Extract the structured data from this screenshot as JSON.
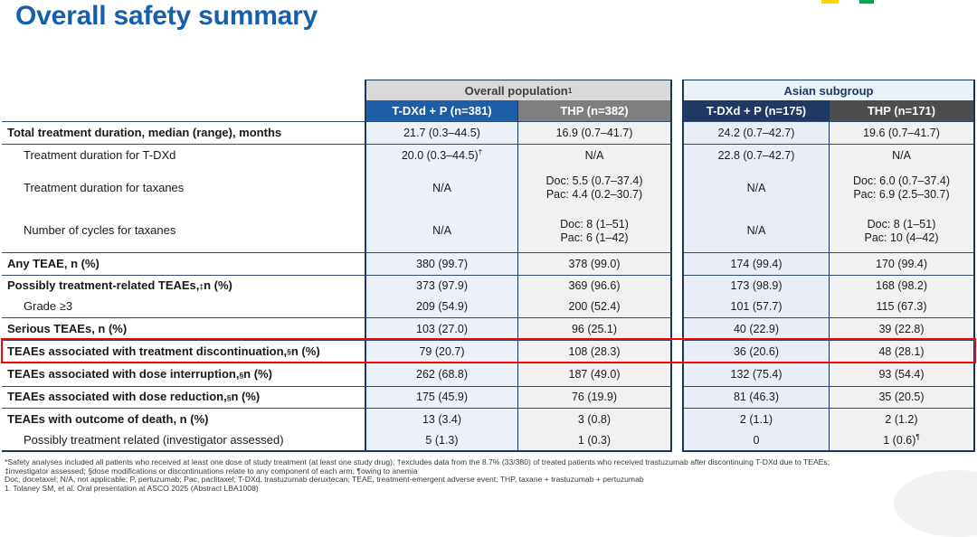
{
  "slide": {
    "title": "Overall safety summary"
  },
  "colors": {
    "title_blue": "#1660AB",
    "header_blue": "#1E5EA9",
    "header_navy": "#1F3864",
    "header_gray": "#7F7F7F",
    "header_dark_gray": "#4D4D4D",
    "highlight_red": "#FE0000",
    "logo_yellow": "#FFD500",
    "logo_green": "#00A94F"
  },
  "table": {
    "column_groups": [
      {
        "label": "Overall population",
        "sup": "1",
        "columns": [
          "T-DXd + P (n=381)",
          "THP (n=382)"
        ]
      },
      {
        "label": "Asian subgroup",
        "sup": "",
        "columns": [
          "T-DXd + P (n=175)",
          "THP (n=171)"
        ]
      }
    ],
    "rows": [
      {
        "label": "Total treatment duration, median (range), months",
        "style": "group",
        "rule_above": true,
        "cells": [
          {
            "lines": [
              "21.7 (0.3–44.5)"
            ]
          },
          {
            "lines": [
              "16.9 (0.7–41.7)"
            ]
          },
          {
            "lines": [
              "24.2 (0.7–42.7)"
            ]
          },
          {
            "lines": [
              "19.6 (0.7–41.7)"
            ]
          }
        ]
      },
      {
        "label": "Treatment duration for T-DXd",
        "style": "sub",
        "rule_above": true,
        "cells": [
          {
            "lines": [
              "20.0 (0.3–44.5)"
            ],
            "sup": "†"
          },
          {
            "lines": [
              "N/A"
            ]
          },
          {
            "lines": [
              "22.8 (0.7–42.7)"
            ]
          },
          {
            "lines": [
              "N/A"
            ]
          }
        ]
      },
      {
        "label": "Treatment duration for taxanes",
        "style": "sub",
        "cells": [
          {
            "lines": [
              "N/A"
            ]
          },
          {
            "lines": [
              "Doc: 5.5 (0.7–37.4)",
              "Pac: 4.4 (0.2–30.7)"
            ]
          },
          {
            "lines": [
              "N/A"
            ]
          },
          {
            "lines": [
              "Doc: 6.0 (0.7–37.4)",
              "Pac: 6.9 (2.5–30.7)"
            ]
          }
        ]
      },
      {
        "label": "Number of cycles for taxanes",
        "style": "sub",
        "cells": [
          {
            "lines": [
              "N/A"
            ]
          },
          {
            "lines": [
              "Doc: 8 (1–51)",
              "Pac: 6 (1–42)"
            ]
          },
          {
            "lines": [
              "N/A"
            ]
          },
          {
            "lines": [
              "Doc: 8 (1–51)",
              "Pac: 10 (4–42)"
            ]
          }
        ]
      },
      {
        "label": "Any TEAE, n (%)",
        "style": "group",
        "rule_above": true,
        "cells": [
          {
            "lines": [
              "380 (99.7)"
            ]
          },
          {
            "lines": [
              "378 (99.0)"
            ]
          },
          {
            "lines": [
              "174 (99.4)"
            ]
          },
          {
            "lines": [
              "170 (99.4)"
            ]
          }
        ]
      },
      {
        "label": "Possibly treatment-related TEAEs,",
        "label_sup": "‡",
        "label_after": " n (%)",
        "style": "group",
        "rule_above": true,
        "cells": [
          {
            "lines": [
              "373 (97.9)"
            ]
          },
          {
            "lines": [
              "369 (96.6)"
            ]
          },
          {
            "lines": [
              "173 (98.9)"
            ]
          },
          {
            "lines": [
              "168 (98.2)"
            ]
          }
        ]
      },
      {
        "label": "Grade ≥3",
        "style": "sub",
        "cells": [
          {
            "lines": [
              "209 (54.9)"
            ]
          },
          {
            "lines": [
              "200 (52.4)"
            ]
          },
          {
            "lines": [
              "101 (57.7)"
            ]
          },
          {
            "lines": [
              "115 (67.3)"
            ]
          }
        ]
      },
      {
        "label": "Serious TEAEs, n (%)",
        "style": "group",
        "rule_above": true,
        "cells": [
          {
            "lines": [
              "103 (27.0)"
            ]
          },
          {
            "lines": [
              "96 (25.1)"
            ]
          },
          {
            "lines": [
              "40 (22.9)"
            ]
          },
          {
            "lines": [
              "39 (22.8)"
            ]
          }
        ]
      },
      {
        "label": "TEAEs associated with treatment discontinuation,",
        "label_sup": "§",
        "label_after": " n (%)",
        "style": "group",
        "rule_above": true,
        "highlight": true,
        "cells": [
          {
            "lines": [
              "79 (20.7)"
            ]
          },
          {
            "lines": [
              "108 (28.3)"
            ]
          },
          {
            "lines": [
              "36 (20.6)"
            ]
          },
          {
            "lines": [
              "48 (28.1)"
            ]
          }
        ]
      },
      {
        "label": "TEAEs associated with dose interruption,",
        "label_sup": "§",
        "label_after": " n (%)",
        "style": "group",
        "rule_above": true,
        "cells": [
          {
            "lines": [
              "262 (68.8)"
            ]
          },
          {
            "lines": [
              "187 (49.0)"
            ]
          },
          {
            "lines": [
              "132 (75.4)"
            ]
          },
          {
            "lines": [
              "93 (54.4)"
            ]
          }
        ]
      },
      {
        "label": "TEAEs associated with dose reduction,",
        "label_sup": "§",
        "label_after": " n (%)",
        "style": "group",
        "rule_above": true,
        "cells": [
          {
            "lines": [
              "175 (45.9)"
            ]
          },
          {
            "lines": [
              "76 (19.9)"
            ]
          },
          {
            "lines": [
              "81 (46.3)"
            ]
          },
          {
            "lines": [
              "35 (20.5)"
            ]
          }
        ]
      },
      {
        "label": "TEAEs with outcome of death, n (%)",
        "style": "group",
        "rule_above": true,
        "cells": [
          {
            "lines": [
              "13 (3.4)"
            ]
          },
          {
            "lines": [
              "3 (0.8)"
            ]
          },
          {
            "lines": [
              "2 (1.1)"
            ]
          },
          {
            "lines": [
              "2 (1.2)"
            ]
          }
        ]
      },
      {
        "label": "Possibly treatment related (investigator assessed)",
        "style": "sub",
        "cells": [
          {
            "lines": [
              "5 (1.3)"
            ]
          },
          {
            "lines": [
              "1 (0.3)"
            ]
          },
          {
            "lines": [
              "0"
            ]
          },
          {
            "lines": [
              "1 (0.6)"
            ],
            "sup": "¶"
          }
        ]
      }
    ]
  },
  "footnotes": [
    "*Safety analyses included all patients who received at least one dose of study treatment (at least one study drug); †excludes data from the 8.7% (33/380) of treated patients who received trastuzumab after discontinuing T-DXd due to TEAEs;",
    "‡investigator assessed; §dose modifications or discontinuations relate to any component of each arm; ¶owing to anemia",
    "Doc, docetaxel; N/A, not applicable; P, pertuzumab; Pac, paclitaxel; T-DXd, trastuzumab deruxtecan; TEAE, treatment-emergent adverse event; THP, taxane + trastuzumab + pertuzumab",
    "1. Tolaney SM, et al. Oral presentation at ASCO 2025 (Abstract LBA1008)"
  ]
}
